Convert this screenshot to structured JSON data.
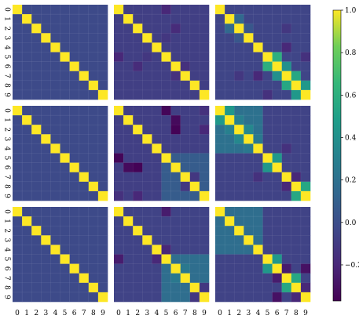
{
  "chart_data": {
    "type": "heatmap",
    "layout": {
      "rows": 3,
      "cols": 3
    },
    "matrix_size": 10,
    "tick_labels": [
      "0",
      "1",
      "2",
      "3",
      "4",
      "5",
      "6",
      "7",
      "8",
      "9"
    ],
    "colormap": "viridis",
    "vmin": -0.37,
    "vmax": 1.0,
    "colorbar": {
      "ticks": [
        1.0,
        0.8,
        0.6,
        0.4,
        0.2,
        0.0,
        -0.2
      ],
      "tick_labels": [
        "1.0",
        "0.8",
        "0.6",
        "0.4",
        "0.2",
        "0.0",
        "−0.2"
      ]
    },
    "panels": [
      {
        "diag": 1.0,
        "base": -0.02,
        "blocks": [],
        "cells": []
      },
      {
        "diag": 1.0,
        "base": -0.08,
        "blocks": [],
        "cells": [
          [
            0,
            5,
            -0.2
          ],
          [
            5,
            0,
            -0.2
          ],
          [
            2,
            6,
            -0.18
          ],
          [
            6,
            2,
            -0.18
          ],
          [
            5,
            3,
            -0.12
          ],
          [
            3,
            5,
            -0.12
          ],
          [
            6,
            7,
            -0.15
          ],
          [
            7,
            6,
            -0.15
          ]
        ]
      },
      {
        "diag": 1.0,
        "base": -0.05,
        "blocks": [],
        "cells": [
          [
            2,
            1,
            0.15
          ],
          [
            1,
            2,
            0.15
          ],
          [
            1,
            2,
            0.15
          ],
          [
            2,
            3,
            0.05
          ],
          [
            3,
            2,
            0.05
          ],
          [
            5,
            6,
            0.6
          ],
          [
            6,
            5,
            0.6
          ],
          [
            6,
            7,
            0.4
          ],
          [
            7,
            6,
            0.4
          ],
          [
            7,
            8,
            0.55
          ],
          [
            8,
            7,
            0.55
          ],
          [
            8,
            9,
            0.45
          ],
          [
            9,
            8,
            0.45
          ],
          [
            7,
            4,
            -0.2
          ],
          [
            4,
            7,
            -0.2
          ],
          [
            9,
            5,
            -0.15
          ],
          [
            5,
            9,
            -0.15
          ],
          [
            2,
            7,
            -0.12
          ],
          [
            7,
            2,
            -0.12
          ]
        ]
      },
      {
        "diag": 1.0,
        "base": -0.02,
        "blocks": [],
        "cells": []
      },
      {
        "diag": 1.0,
        "base": -0.08,
        "blocks": [
          [
            5,
            9,
            5,
            9,
            0.08
          ]
        ],
        "cells": [
          [
            0,
            5,
            -0.35
          ],
          [
            5,
            0,
            -0.35
          ],
          [
            1,
            6,
            -0.33
          ],
          [
            6,
            1,
            -0.33
          ],
          [
            2,
            6,
            -0.36
          ],
          [
            6,
            2,
            -0.36
          ],
          [
            2,
            9,
            -0.2
          ],
          [
            9,
            2,
            -0.2
          ],
          [
            7,
            8,
            -0.12
          ],
          [
            8,
            7,
            -0.12
          ],
          [
            0,
            9,
            -0.15
          ],
          [
            9,
            0,
            -0.15
          ]
        ]
      },
      {
        "diag": 1.0,
        "base": -0.06,
        "blocks": [
          [
            0,
            4,
            0,
            4,
            0.2
          ]
        ],
        "cells": [
          [
            0,
            1,
            0.45
          ],
          [
            1,
            0,
            0.45
          ],
          [
            1,
            2,
            0.3
          ],
          [
            2,
            1,
            0.3
          ],
          [
            2,
            3,
            0.35
          ],
          [
            3,
            2,
            0.35
          ],
          [
            3,
            4,
            0.25
          ],
          [
            4,
            3,
            0.25
          ],
          [
            5,
            6,
            0.45
          ],
          [
            6,
            5,
            0.45
          ],
          [
            7,
            8,
            -0.2
          ],
          [
            8,
            7,
            -0.2
          ],
          [
            8,
            9,
            0.55
          ],
          [
            9,
            8,
            0.55
          ],
          [
            7,
            4,
            -0.15
          ],
          [
            4,
            7,
            -0.15
          ]
        ]
      },
      {
        "diag": 1.0,
        "base": -0.02,
        "blocks": [],
        "cells": []
      },
      {
        "diag": 1.0,
        "base": -0.06,
        "blocks": [
          [
            5,
            9,
            5,
            9,
            0.18
          ]
        ],
        "cells": [
          [
            6,
            7,
            0.25
          ],
          [
            7,
            6,
            0.25
          ],
          [
            0,
            5,
            -0.25
          ],
          [
            5,
            0,
            -0.25
          ],
          [
            4,
            5,
            -0.2
          ],
          [
            5,
            4,
            -0.2
          ],
          [
            8,
            9,
            -0.12
          ],
          [
            9,
            8,
            -0.12
          ]
        ]
      },
      {
        "diag": 1.0,
        "base": -0.06,
        "blocks": [
          [
            0,
            4,
            0,
            4,
            0.18
          ]
        ],
        "cells": [
          [
            5,
            6,
            0.45
          ],
          [
            6,
            5,
            0.45
          ],
          [
            7,
            8,
            0.55
          ],
          [
            8,
            7,
            0.55
          ],
          [
            6,
            7,
            -0.25
          ],
          [
            7,
            6,
            -0.25
          ],
          [
            8,
            9,
            -0.2
          ],
          [
            9,
            8,
            -0.2
          ],
          [
            6,
            9,
            -0.3
          ],
          [
            9,
            6,
            -0.3
          ]
        ]
      }
    ]
  }
}
